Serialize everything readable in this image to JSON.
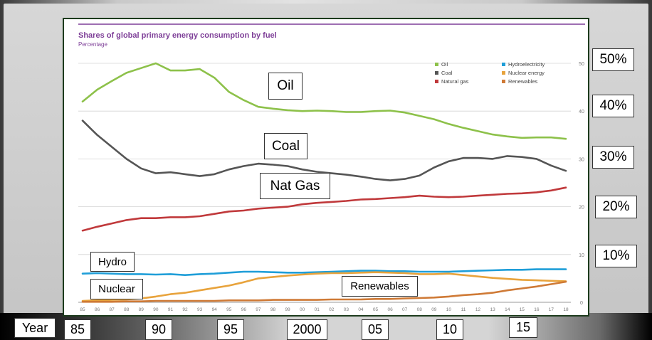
{
  "chart_data": {
    "type": "line",
    "title": "Shares of global primary energy consumption by fuel",
    "subtitle": "Percentage",
    "x": [
      1985,
      1986,
      1987,
      1988,
      1989,
      1990,
      1991,
      1992,
      1993,
      1994,
      1995,
      1996,
      1997,
      1998,
      1999,
      2000,
      2001,
      2002,
      2003,
      2004,
      2005,
      2006,
      2007,
      2008,
      2009,
      2010,
      2011,
      2012,
      2013,
      2014,
      2015,
      2016,
      2017,
      2018
    ],
    "x_tick_labels": [
      "85",
      "86",
      "87",
      "88",
      "89",
      "90",
      "91",
      "92",
      "93",
      "94",
      "95",
      "96",
      "97",
      "98",
      "99",
      "00",
      "01",
      "02",
      "03",
      "04",
      "05",
      "06",
      "07",
      "08",
      "09",
      "10",
      "11",
      "12",
      "13",
      "14",
      "15",
      "16",
      "17",
      "18"
    ],
    "ylim": [
      0,
      50
    ],
    "y_ticks": [
      "0",
      "10",
      "20",
      "30",
      "40",
      "50"
    ],
    "grid": true,
    "legend_position": "top-right",
    "series": [
      {
        "name": "Oil",
        "color": "#8dc14a",
        "values": [
          42.0,
          44.5,
          46.3,
          48.0,
          49.0,
          50.0,
          48.5,
          48.5,
          48.8,
          47.0,
          44.0,
          42.3,
          40.9,
          40.5,
          40.2,
          40.0,
          40.1,
          40.0,
          39.8,
          39.8,
          40.0,
          40.1,
          39.7,
          39.0,
          38.3,
          37.3,
          36.5,
          35.8,
          35.1,
          34.7,
          34.4,
          34.5,
          34.5,
          34.2
        ]
      },
      {
        "name": "Coal",
        "color": "#555555",
        "values": [
          38.0,
          35.0,
          32.5,
          30.0,
          28.0,
          27.0,
          27.2,
          26.8,
          26.4,
          26.8,
          27.8,
          28.5,
          29.0,
          28.8,
          28.5,
          27.8,
          27.3,
          27.0,
          26.7,
          26.3,
          25.8,
          25.5,
          25.8,
          26.5,
          28.2,
          29.5,
          30.2,
          30.2,
          30.0,
          30.6,
          30.4,
          30.0,
          28.6,
          27.5
        ]
      },
      {
        "name": "Natural gas",
        "color": "#c0393b",
        "values": [
          15.0,
          15.8,
          16.5,
          17.2,
          17.6,
          17.6,
          17.8,
          17.8,
          18.0,
          18.5,
          19.0,
          19.2,
          19.6,
          19.8,
          20.0,
          20.5,
          20.8,
          21.0,
          21.2,
          21.5,
          21.6,
          21.8,
          22.0,
          22.3,
          22.1,
          22.0,
          22.1,
          22.3,
          22.5,
          22.7,
          22.8,
          23.0,
          23.4,
          24.0
        ]
      },
      {
        "name": "Hydroelectricity",
        "color": "#1f9ed8",
        "values": [
          6.0,
          6.1,
          6.0,
          5.9,
          5.9,
          5.8,
          5.9,
          5.7,
          5.9,
          6.0,
          6.2,
          6.4,
          6.4,
          6.3,
          6.2,
          6.2,
          6.3,
          6.4,
          6.5,
          6.6,
          6.6,
          6.5,
          6.5,
          6.4,
          6.4,
          6.4,
          6.5,
          6.6,
          6.7,
          6.8,
          6.8,
          6.9,
          6.9,
          6.9
        ]
      },
      {
        "name": "Nuclear energy",
        "color": "#e8a33c",
        "values": [
          0.3,
          0.4,
          0.5,
          0.6,
          0.8,
          1.2,
          1.7,
          2.0,
          2.5,
          3.0,
          3.5,
          4.2,
          5.0,
          5.3,
          5.6,
          5.8,
          6.0,
          6.1,
          6.1,
          6.2,
          6.3,
          6.2,
          6.1,
          5.9,
          5.9,
          6.0,
          5.7,
          5.4,
          5.1,
          4.9,
          4.7,
          4.6,
          4.5,
          4.4
        ]
      },
      {
        "name": "Renewables",
        "color": "#cf7a36",
        "values": [
          0.1,
          0.1,
          0.1,
          0.2,
          0.2,
          0.3,
          0.3,
          0.3,
          0.3,
          0.3,
          0.4,
          0.4,
          0.4,
          0.5,
          0.5,
          0.5,
          0.5,
          0.6,
          0.6,
          0.6,
          0.7,
          0.7,
          0.8,
          0.9,
          1.0,
          1.2,
          1.5,
          1.7,
          2.0,
          2.5,
          2.9,
          3.3,
          3.8,
          4.3
        ]
      }
    ]
  },
  "annotations": {
    "oil": "Oil",
    "coal": "Coal",
    "nat_gas": "Nat Gas",
    "hydro": "Hydro",
    "nuclear": "Nuclear",
    "renewables": "Renewables"
  },
  "right_axis": [
    "50%",
    "40%",
    "30%",
    "20%",
    "10%"
  ],
  "bottom_axis": {
    "label": "Year",
    "years": [
      "85",
      "90",
      "95",
      "2000",
      "05",
      "10",
      "15"
    ]
  }
}
